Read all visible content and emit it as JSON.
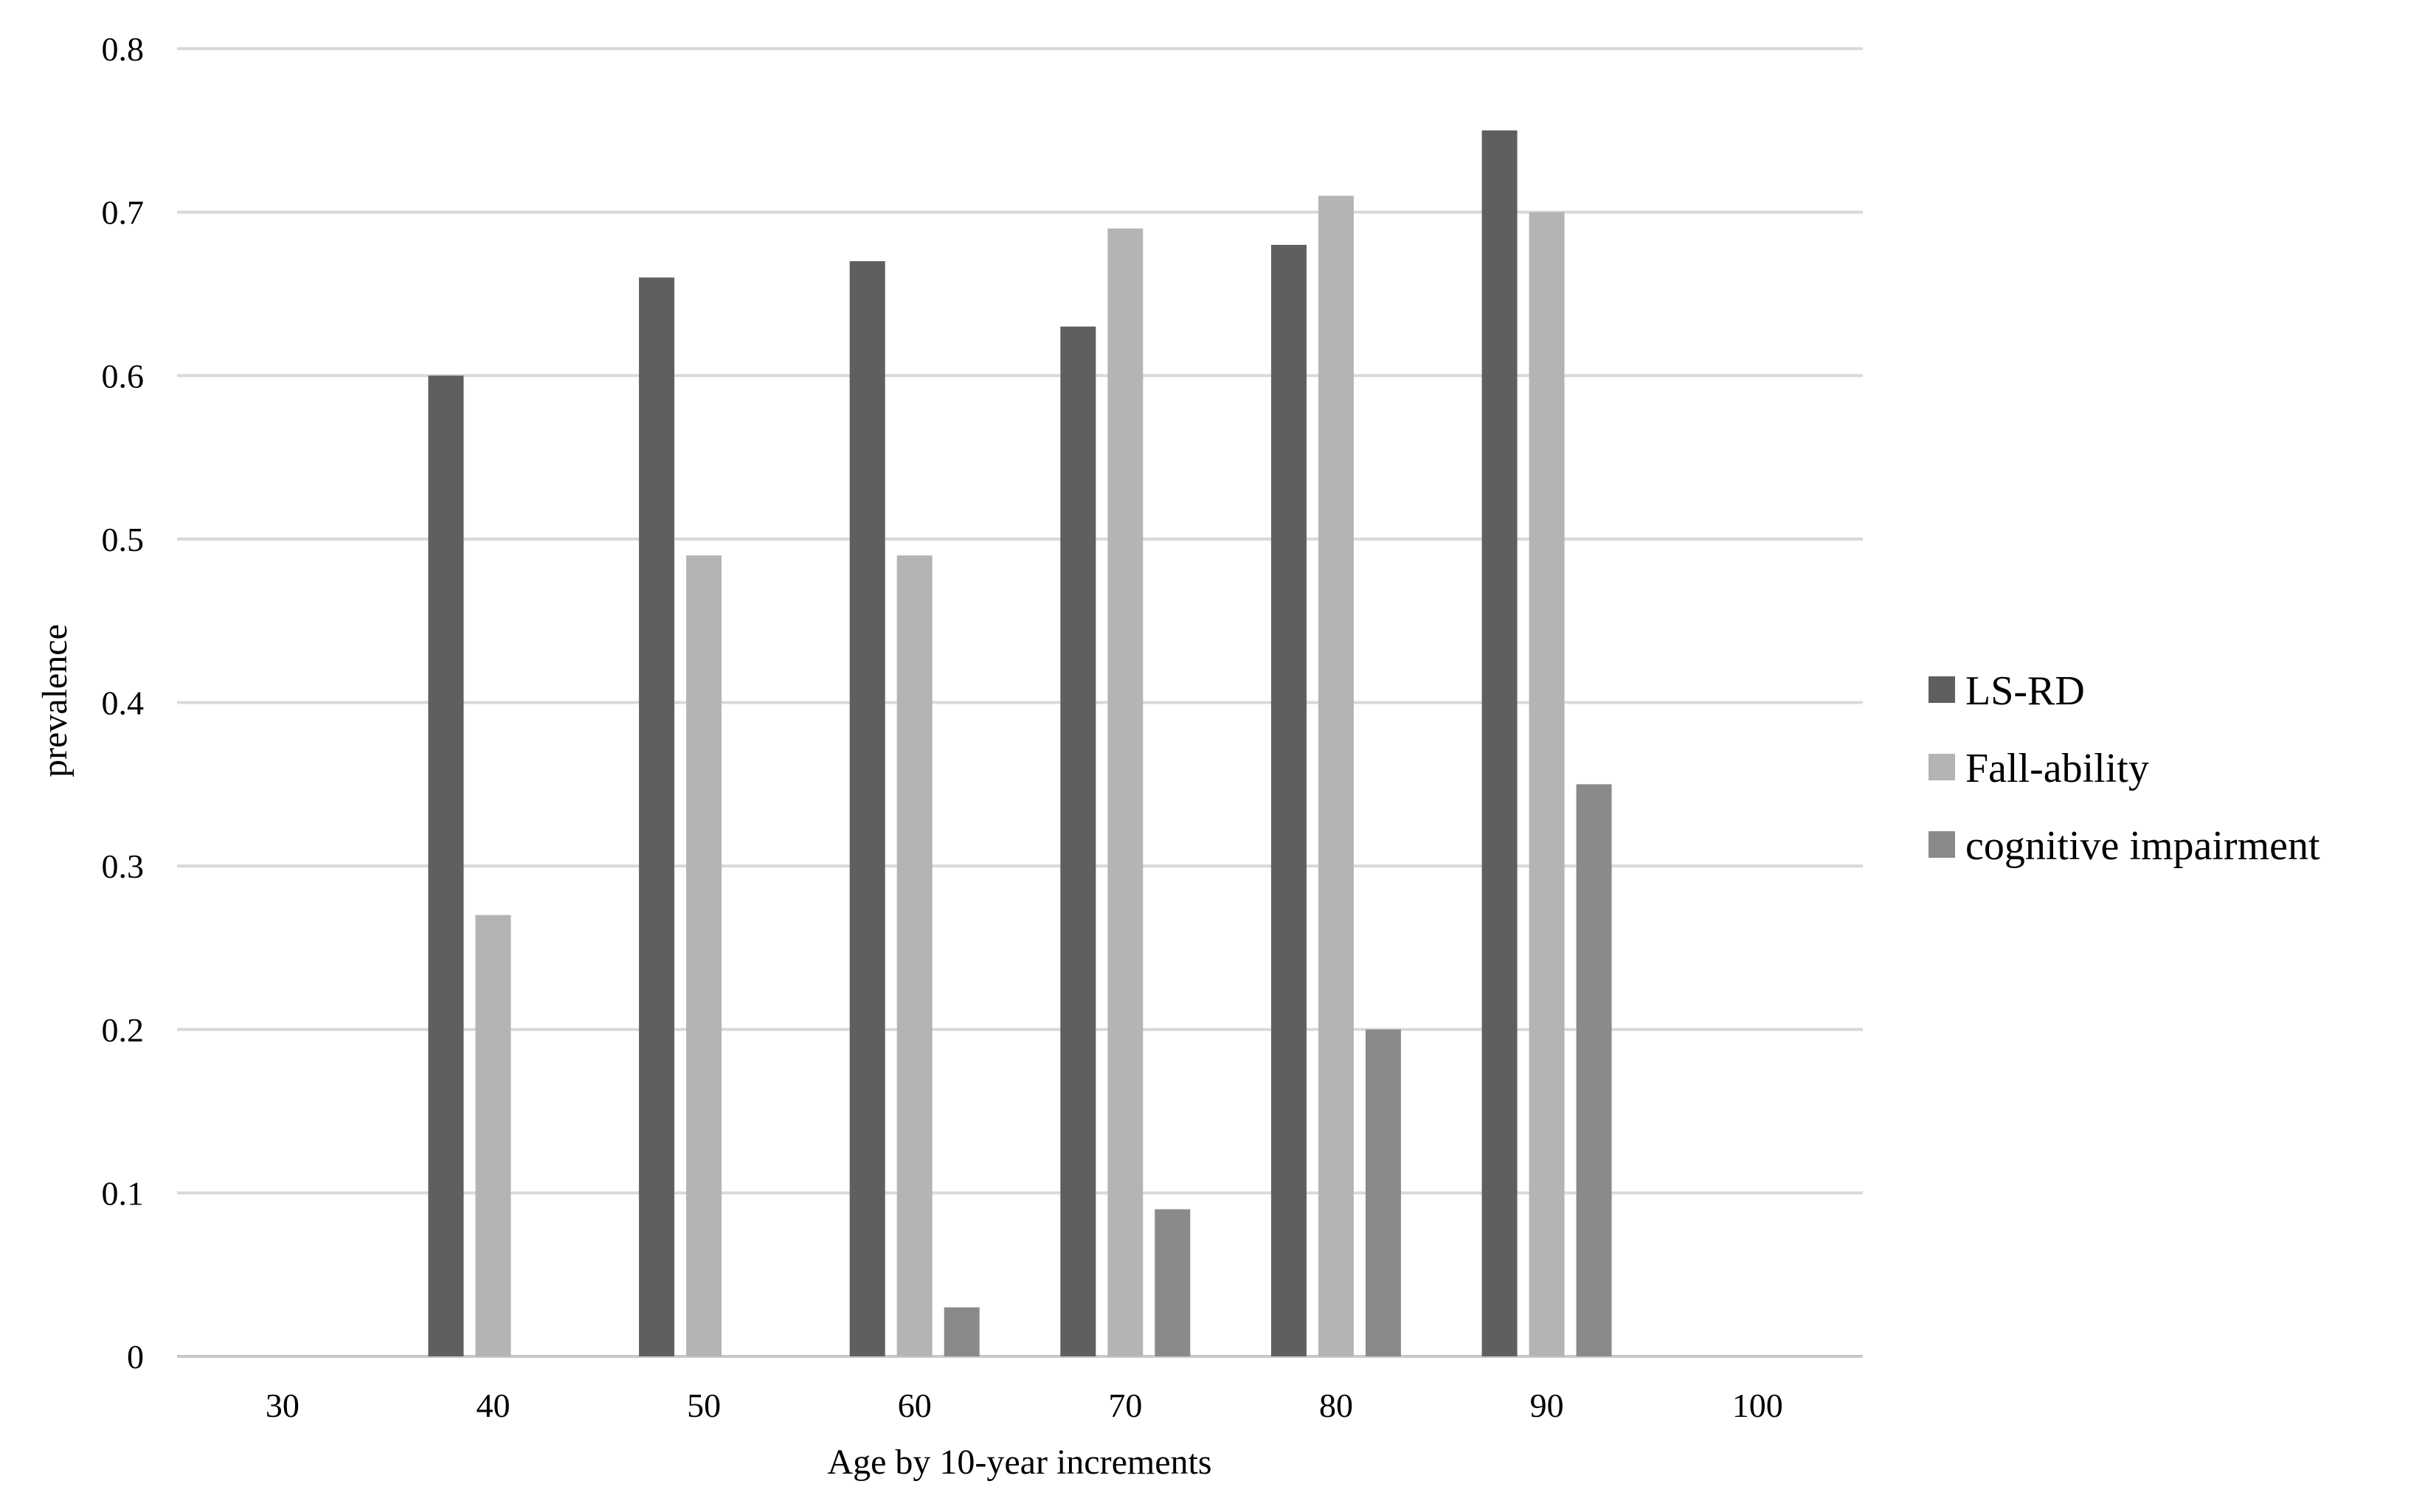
{
  "chart_data": {
    "type": "bar",
    "xlabel": "Age by 10-year increments",
    "ylabel": "prevalence",
    "ylim": [
      0,
      0.8
    ],
    "yticks": [
      "0",
      "0.1",
      "0.2",
      "0.3",
      "0.4",
      "0.5",
      "0.6",
      "0.7",
      "0.8"
    ],
    "categories": [
      "30",
      "40",
      "50",
      "60",
      "70",
      "80",
      "90",
      "100"
    ],
    "series": [
      {
        "name": "LS-RD",
        "color": "#5f5f5f",
        "values": [
          null,
          0.6,
          0.66,
          0.67,
          0.63,
          0.68,
          0.75,
          null
        ]
      },
      {
        "name": "Fall-ability",
        "color": "#b4b4b4",
        "values": [
          null,
          0.27,
          0.49,
          0.49,
          0.69,
          0.71,
          0.7,
          null
        ]
      },
      {
        "name": "cognitive impairment",
        "color": "#8a8a8a",
        "values": [
          null,
          null,
          null,
          0.03,
          0.09,
          0.2,
          0.35,
          null
        ]
      }
    ],
    "grid": true,
    "legend": "right"
  }
}
